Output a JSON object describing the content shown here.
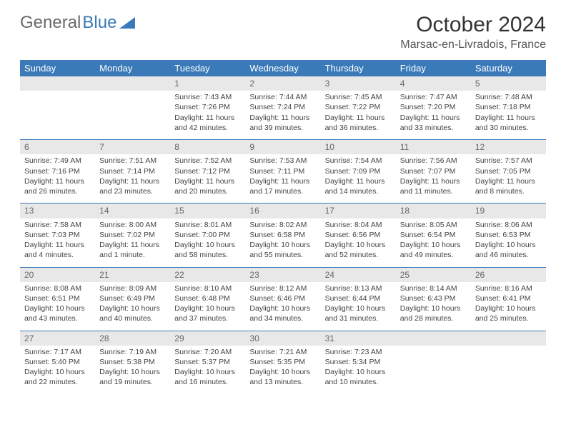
{
  "logo": {
    "text_gray": "General",
    "text_blue": "Blue"
  },
  "header": {
    "month_title": "October 2024",
    "location": "Marsac-en-Livradois, France"
  },
  "colors": {
    "brand_blue": "#3a7ab8",
    "header_row_bg": "#3a7ab8",
    "header_row_text": "#ffffff",
    "daynum_bg": "#e8e8e8",
    "daynum_text": "#666666",
    "body_text": "#444444",
    "row_divider": "#3a7ab8",
    "page_bg": "#ffffff"
  },
  "typography": {
    "month_title_fontsize": 30,
    "location_fontsize": 16,
    "weekday_fontsize": 13,
    "daynum_fontsize": 12,
    "cell_fontsize": 10.5,
    "font_family": "Arial"
  },
  "weekdays": [
    "Sunday",
    "Monday",
    "Tuesday",
    "Wednesday",
    "Thursday",
    "Friday",
    "Saturday"
  ],
  "weeks": [
    [
      {
        "day": "",
        "sunrise": "",
        "sunset": "",
        "daylight": ""
      },
      {
        "day": "",
        "sunrise": "",
        "sunset": "",
        "daylight": ""
      },
      {
        "day": "1",
        "sunrise": "Sunrise: 7:43 AM",
        "sunset": "Sunset: 7:26 PM",
        "daylight": "Daylight: 11 hours and 42 minutes."
      },
      {
        "day": "2",
        "sunrise": "Sunrise: 7:44 AM",
        "sunset": "Sunset: 7:24 PM",
        "daylight": "Daylight: 11 hours and 39 minutes."
      },
      {
        "day": "3",
        "sunrise": "Sunrise: 7:45 AM",
        "sunset": "Sunset: 7:22 PM",
        "daylight": "Daylight: 11 hours and 36 minutes."
      },
      {
        "day": "4",
        "sunrise": "Sunrise: 7:47 AM",
        "sunset": "Sunset: 7:20 PM",
        "daylight": "Daylight: 11 hours and 33 minutes."
      },
      {
        "day": "5",
        "sunrise": "Sunrise: 7:48 AM",
        "sunset": "Sunset: 7:18 PM",
        "daylight": "Daylight: 11 hours and 30 minutes."
      }
    ],
    [
      {
        "day": "6",
        "sunrise": "Sunrise: 7:49 AM",
        "sunset": "Sunset: 7:16 PM",
        "daylight": "Daylight: 11 hours and 26 minutes."
      },
      {
        "day": "7",
        "sunrise": "Sunrise: 7:51 AM",
        "sunset": "Sunset: 7:14 PM",
        "daylight": "Daylight: 11 hours and 23 minutes."
      },
      {
        "day": "8",
        "sunrise": "Sunrise: 7:52 AM",
        "sunset": "Sunset: 7:12 PM",
        "daylight": "Daylight: 11 hours and 20 minutes."
      },
      {
        "day": "9",
        "sunrise": "Sunrise: 7:53 AM",
        "sunset": "Sunset: 7:11 PM",
        "daylight": "Daylight: 11 hours and 17 minutes."
      },
      {
        "day": "10",
        "sunrise": "Sunrise: 7:54 AM",
        "sunset": "Sunset: 7:09 PM",
        "daylight": "Daylight: 11 hours and 14 minutes."
      },
      {
        "day": "11",
        "sunrise": "Sunrise: 7:56 AM",
        "sunset": "Sunset: 7:07 PM",
        "daylight": "Daylight: 11 hours and 11 minutes."
      },
      {
        "day": "12",
        "sunrise": "Sunrise: 7:57 AM",
        "sunset": "Sunset: 7:05 PM",
        "daylight": "Daylight: 11 hours and 8 minutes."
      }
    ],
    [
      {
        "day": "13",
        "sunrise": "Sunrise: 7:58 AM",
        "sunset": "Sunset: 7:03 PM",
        "daylight": "Daylight: 11 hours and 4 minutes."
      },
      {
        "day": "14",
        "sunrise": "Sunrise: 8:00 AM",
        "sunset": "Sunset: 7:02 PM",
        "daylight": "Daylight: 11 hours and 1 minute."
      },
      {
        "day": "15",
        "sunrise": "Sunrise: 8:01 AM",
        "sunset": "Sunset: 7:00 PM",
        "daylight": "Daylight: 10 hours and 58 minutes."
      },
      {
        "day": "16",
        "sunrise": "Sunrise: 8:02 AM",
        "sunset": "Sunset: 6:58 PM",
        "daylight": "Daylight: 10 hours and 55 minutes."
      },
      {
        "day": "17",
        "sunrise": "Sunrise: 8:04 AM",
        "sunset": "Sunset: 6:56 PM",
        "daylight": "Daylight: 10 hours and 52 minutes."
      },
      {
        "day": "18",
        "sunrise": "Sunrise: 8:05 AM",
        "sunset": "Sunset: 6:54 PM",
        "daylight": "Daylight: 10 hours and 49 minutes."
      },
      {
        "day": "19",
        "sunrise": "Sunrise: 8:06 AM",
        "sunset": "Sunset: 6:53 PM",
        "daylight": "Daylight: 10 hours and 46 minutes."
      }
    ],
    [
      {
        "day": "20",
        "sunrise": "Sunrise: 8:08 AM",
        "sunset": "Sunset: 6:51 PM",
        "daylight": "Daylight: 10 hours and 43 minutes."
      },
      {
        "day": "21",
        "sunrise": "Sunrise: 8:09 AM",
        "sunset": "Sunset: 6:49 PM",
        "daylight": "Daylight: 10 hours and 40 minutes."
      },
      {
        "day": "22",
        "sunrise": "Sunrise: 8:10 AM",
        "sunset": "Sunset: 6:48 PM",
        "daylight": "Daylight: 10 hours and 37 minutes."
      },
      {
        "day": "23",
        "sunrise": "Sunrise: 8:12 AM",
        "sunset": "Sunset: 6:46 PM",
        "daylight": "Daylight: 10 hours and 34 minutes."
      },
      {
        "day": "24",
        "sunrise": "Sunrise: 8:13 AM",
        "sunset": "Sunset: 6:44 PM",
        "daylight": "Daylight: 10 hours and 31 minutes."
      },
      {
        "day": "25",
        "sunrise": "Sunrise: 8:14 AM",
        "sunset": "Sunset: 6:43 PM",
        "daylight": "Daylight: 10 hours and 28 minutes."
      },
      {
        "day": "26",
        "sunrise": "Sunrise: 8:16 AM",
        "sunset": "Sunset: 6:41 PM",
        "daylight": "Daylight: 10 hours and 25 minutes."
      }
    ],
    [
      {
        "day": "27",
        "sunrise": "Sunrise: 7:17 AM",
        "sunset": "Sunset: 5:40 PM",
        "daylight": "Daylight: 10 hours and 22 minutes."
      },
      {
        "day": "28",
        "sunrise": "Sunrise: 7:19 AM",
        "sunset": "Sunset: 5:38 PM",
        "daylight": "Daylight: 10 hours and 19 minutes."
      },
      {
        "day": "29",
        "sunrise": "Sunrise: 7:20 AM",
        "sunset": "Sunset: 5:37 PM",
        "daylight": "Daylight: 10 hours and 16 minutes."
      },
      {
        "day": "30",
        "sunrise": "Sunrise: 7:21 AM",
        "sunset": "Sunset: 5:35 PM",
        "daylight": "Daylight: 10 hours and 13 minutes."
      },
      {
        "day": "31",
        "sunrise": "Sunrise: 7:23 AM",
        "sunset": "Sunset: 5:34 PM",
        "daylight": "Daylight: 10 hours and 10 minutes."
      },
      {
        "day": "",
        "sunrise": "",
        "sunset": "",
        "daylight": ""
      },
      {
        "day": "",
        "sunrise": "",
        "sunset": "",
        "daylight": ""
      }
    ]
  ]
}
